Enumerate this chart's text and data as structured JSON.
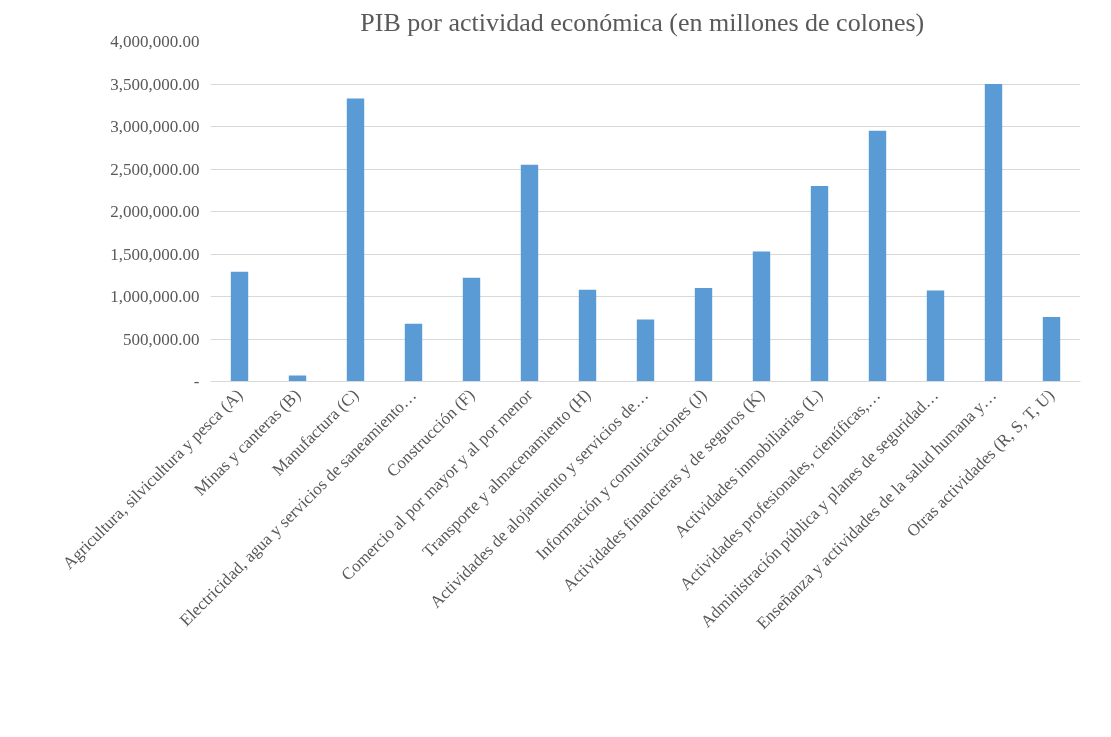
{
  "chart_data": {
    "type": "bar",
    "title": "PIB por actividad económica  (en millones de colones)",
    "categories": [
      "Agricultura, silvicultura y pesca (A)",
      "Minas y canteras (B)",
      "Manufactura (C)",
      "Electricidad, agua y servicios de saneamiento…",
      "Construcción (F)",
      "Comercio al por mayor y al por menor",
      "Transporte y almacenamiento (H)",
      "Actividades de alojamiento y servicios de…",
      "Información y comunicaciones (J)",
      "Actividades financieras y de seguros (K)",
      "Actividades inmobiliarias (L)",
      "Actividades profesionales, científicas,…",
      "Administración pública y planes de seguridad…",
      "Enseñanza y actividades de la salud humana y…",
      "Otras actividades (R, S, T, U)"
    ],
    "values": [
      1290000,
      70000,
      3330000,
      680000,
      1220000,
      2550000,
      1080000,
      730000,
      1100000,
      1530000,
      2300000,
      2950000,
      1070000,
      3500000,
      760000
    ],
    "color": "#5b9bd5",
    "ylim": [
      0,
      4000000
    ],
    "yticks": [
      {
        "value": 0,
        "label": "-"
      },
      {
        "value": 500000,
        "label": "500,000.00"
      },
      {
        "value": 1000000,
        "label": "1,000,000.00"
      },
      {
        "value": 1500000,
        "label": "1,500,000.00"
      },
      {
        "value": 2000000,
        "label": "2,000,000.00"
      },
      {
        "value": 2500000,
        "label": "2,500,000.00"
      },
      {
        "value": 3000000,
        "label": "3,000,000.00"
      },
      {
        "value": 3500000,
        "label": "3,500,000.00"
      },
      {
        "value": 4000000,
        "label": "4,000,000.00"
      }
    ],
    "grid": "y"
  }
}
